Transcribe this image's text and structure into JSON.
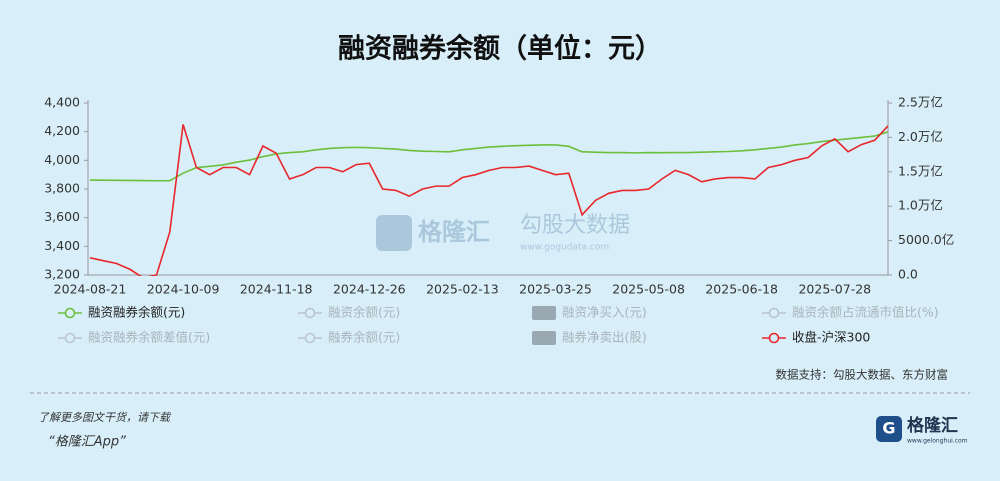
{
  "chart_data": {
    "type": "line",
    "title": "融资融券余额（单位：元）",
    "categories": [
      "2024-08-21",
      null,
      null,
      null,
      null,
      null,
      null,
      "2024-10-09",
      null,
      null,
      null,
      null,
      null,
      null,
      "2024-11-18",
      null,
      null,
      null,
      null,
      null,
      null,
      "2024-12-26",
      null,
      null,
      null,
      null,
      null,
      null,
      "2025-02-13",
      null,
      null,
      null,
      null,
      null,
      null,
      "2025-03-25",
      null,
      null,
      null,
      null,
      null,
      null,
      "2025-05-08",
      null,
      null,
      null,
      null,
      null,
      null,
      "2025-06-18",
      null,
      null,
      null,
      null,
      null,
      null,
      "2025-07-28",
      null,
      null,
      null,
      null
    ],
    "series": [
      {
        "name": "融资融券余额(元)",
        "color": "#6cbf3b",
        "axis": "y2",
        "values": [
          13800,
          13780,
          13760,
          13750,
          13720,
          13700,
          13700,
          14800,
          15600,
          15800,
          16000,
          16400,
          16700,
          17200,
          17600,
          17800,
          17900,
          18200,
          18400,
          18500,
          18550,
          18500,
          18400,
          18300,
          18100,
          18000,
          17950,
          17900,
          18200,
          18400,
          18600,
          18700,
          18800,
          18850,
          18900,
          18900,
          18700,
          17900,
          17850,
          17800,
          17800,
          17750,
          17800,
          17780,
          17800,
          17800,
          17850,
          17900,
          17950,
          18050,
          18200,
          18400,
          18600,
          18900,
          19100,
          19400,
          19600,
          19800,
          20000,
          20200,
          20800
        ]
      },
      {
        "name": "收盘-沪深300",
        "color": "#e8262b",
        "axis": "y",
        "values": [
          3320,
          3300,
          3280,
          3240,
          3180,
          3200,
          3500,
          4250,
          3950,
          3900,
          3950,
          3950,
          3900,
          4100,
          4050,
          3870,
          3900,
          3950,
          3950,
          3920,
          3970,
          3980,
          3800,
          3790,
          3750,
          3800,
          3820,
          3820,
          3880,
          3900,
          3930,
          3950,
          3950,
          3960,
          3930,
          3900,
          3910,
          3620,
          3720,
          3770,
          3790,
          3790,
          3800,
          3870,
          3930,
          3900,
          3850,
          3870,
          3880,
          3880,
          3870,
          3950,
          3970,
          4000,
          4020,
          4100,
          4150,
          4060,
          4110,
          4140,
          4240
        ]
      }
    ],
    "ylim": [
      3200,
      4400
    ],
    "yticks": [
      {
        "value": 3200,
        "label": "3,200"
      },
      {
        "value": 3400,
        "label": "3,400"
      },
      {
        "value": 3600,
        "label": "3,600"
      },
      {
        "value": 3800,
        "label": "3,800"
      },
      {
        "value": 4000,
        "label": "4,000"
      },
      {
        "value": 4200,
        "label": "4,200"
      },
      {
        "value": 4400,
        "label": "4,400"
      }
    ],
    "y2lim": [
      0,
      25000
    ],
    "y2ticks": [
      {
        "value": 0,
        "label": "0.0"
      },
      {
        "value": 5000,
        "label": "5000.0亿"
      },
      {
        "value": 10000,
        "label": "1.0万亿"
      },
      {
        "value": 15000,
        "label": "1.5万亿"
      },
      {
        "value": 20000,
        "label": "2.0万亿"
      },
      {
        "value": 25000,
        "label": "2.5万亿"
      }
    ],
    "legend_inactive": [
      "融资余额(元)",
      "融资净买入(元)",
      "融资余额占流通市值比(%)",
      "融资融券余额差值(元)",
      "融券余额(元)",
      "融券净卖出(股)"
    ],
    "source": "数据支持：勾股大数据、东方财富",
    "watermark": [
      "格隆汇",
      "勾股大数据",
      "www.gogudata.com"
    ]
  },
  "footer": {
    "note": "了解更多图文干货，请下载",
    "app": "“格隆汇App”",
    "logo": "格隆汇",
    "logo_url": "www.gelonghui.com"
  }
}
